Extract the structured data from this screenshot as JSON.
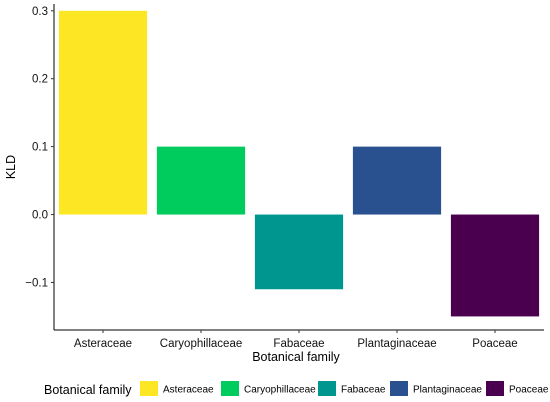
{
  "chart_data": {
    "type": "bar",
    "categories": [
      "Asteraceae",
      "Caryophillaceae",
      "Fabaceae",
      "Plantaginaceae",
      "Poaceae"
    ],
    "values": [
      0.3,
      0.1,
      -0.11,
      0.1,
      -0.15
    ],
    "colors": [
      "#FDE725",
      "#00CC5E",
      "#009690",
      "#29508F",
      "#4A004F"
    ],
    "title": "",
    "xlabel": "Botanical family",
    "ylabel": "KLD",
    "ylim": [
      -0.17,
      0.31
    ],
    "yticks": [
      -0.1,
      0.0,
      0.1,
      0.2,
      0.3
    ],
    "ytick_labels": [
      "−0.1",
      "0.0",
      "0.1",
      "0.2",
      "0.3"
    ],
    "grid": false,
    "legend": {
      "title": "Botanical family",
      "position": "bottom",
      "entries": [
        "Asteraceae",
        "Caryophillaceae",
        "Fabaceae",
        "Plantaginaceae",
        "Poaceae"
      ]
    }
  }
}
